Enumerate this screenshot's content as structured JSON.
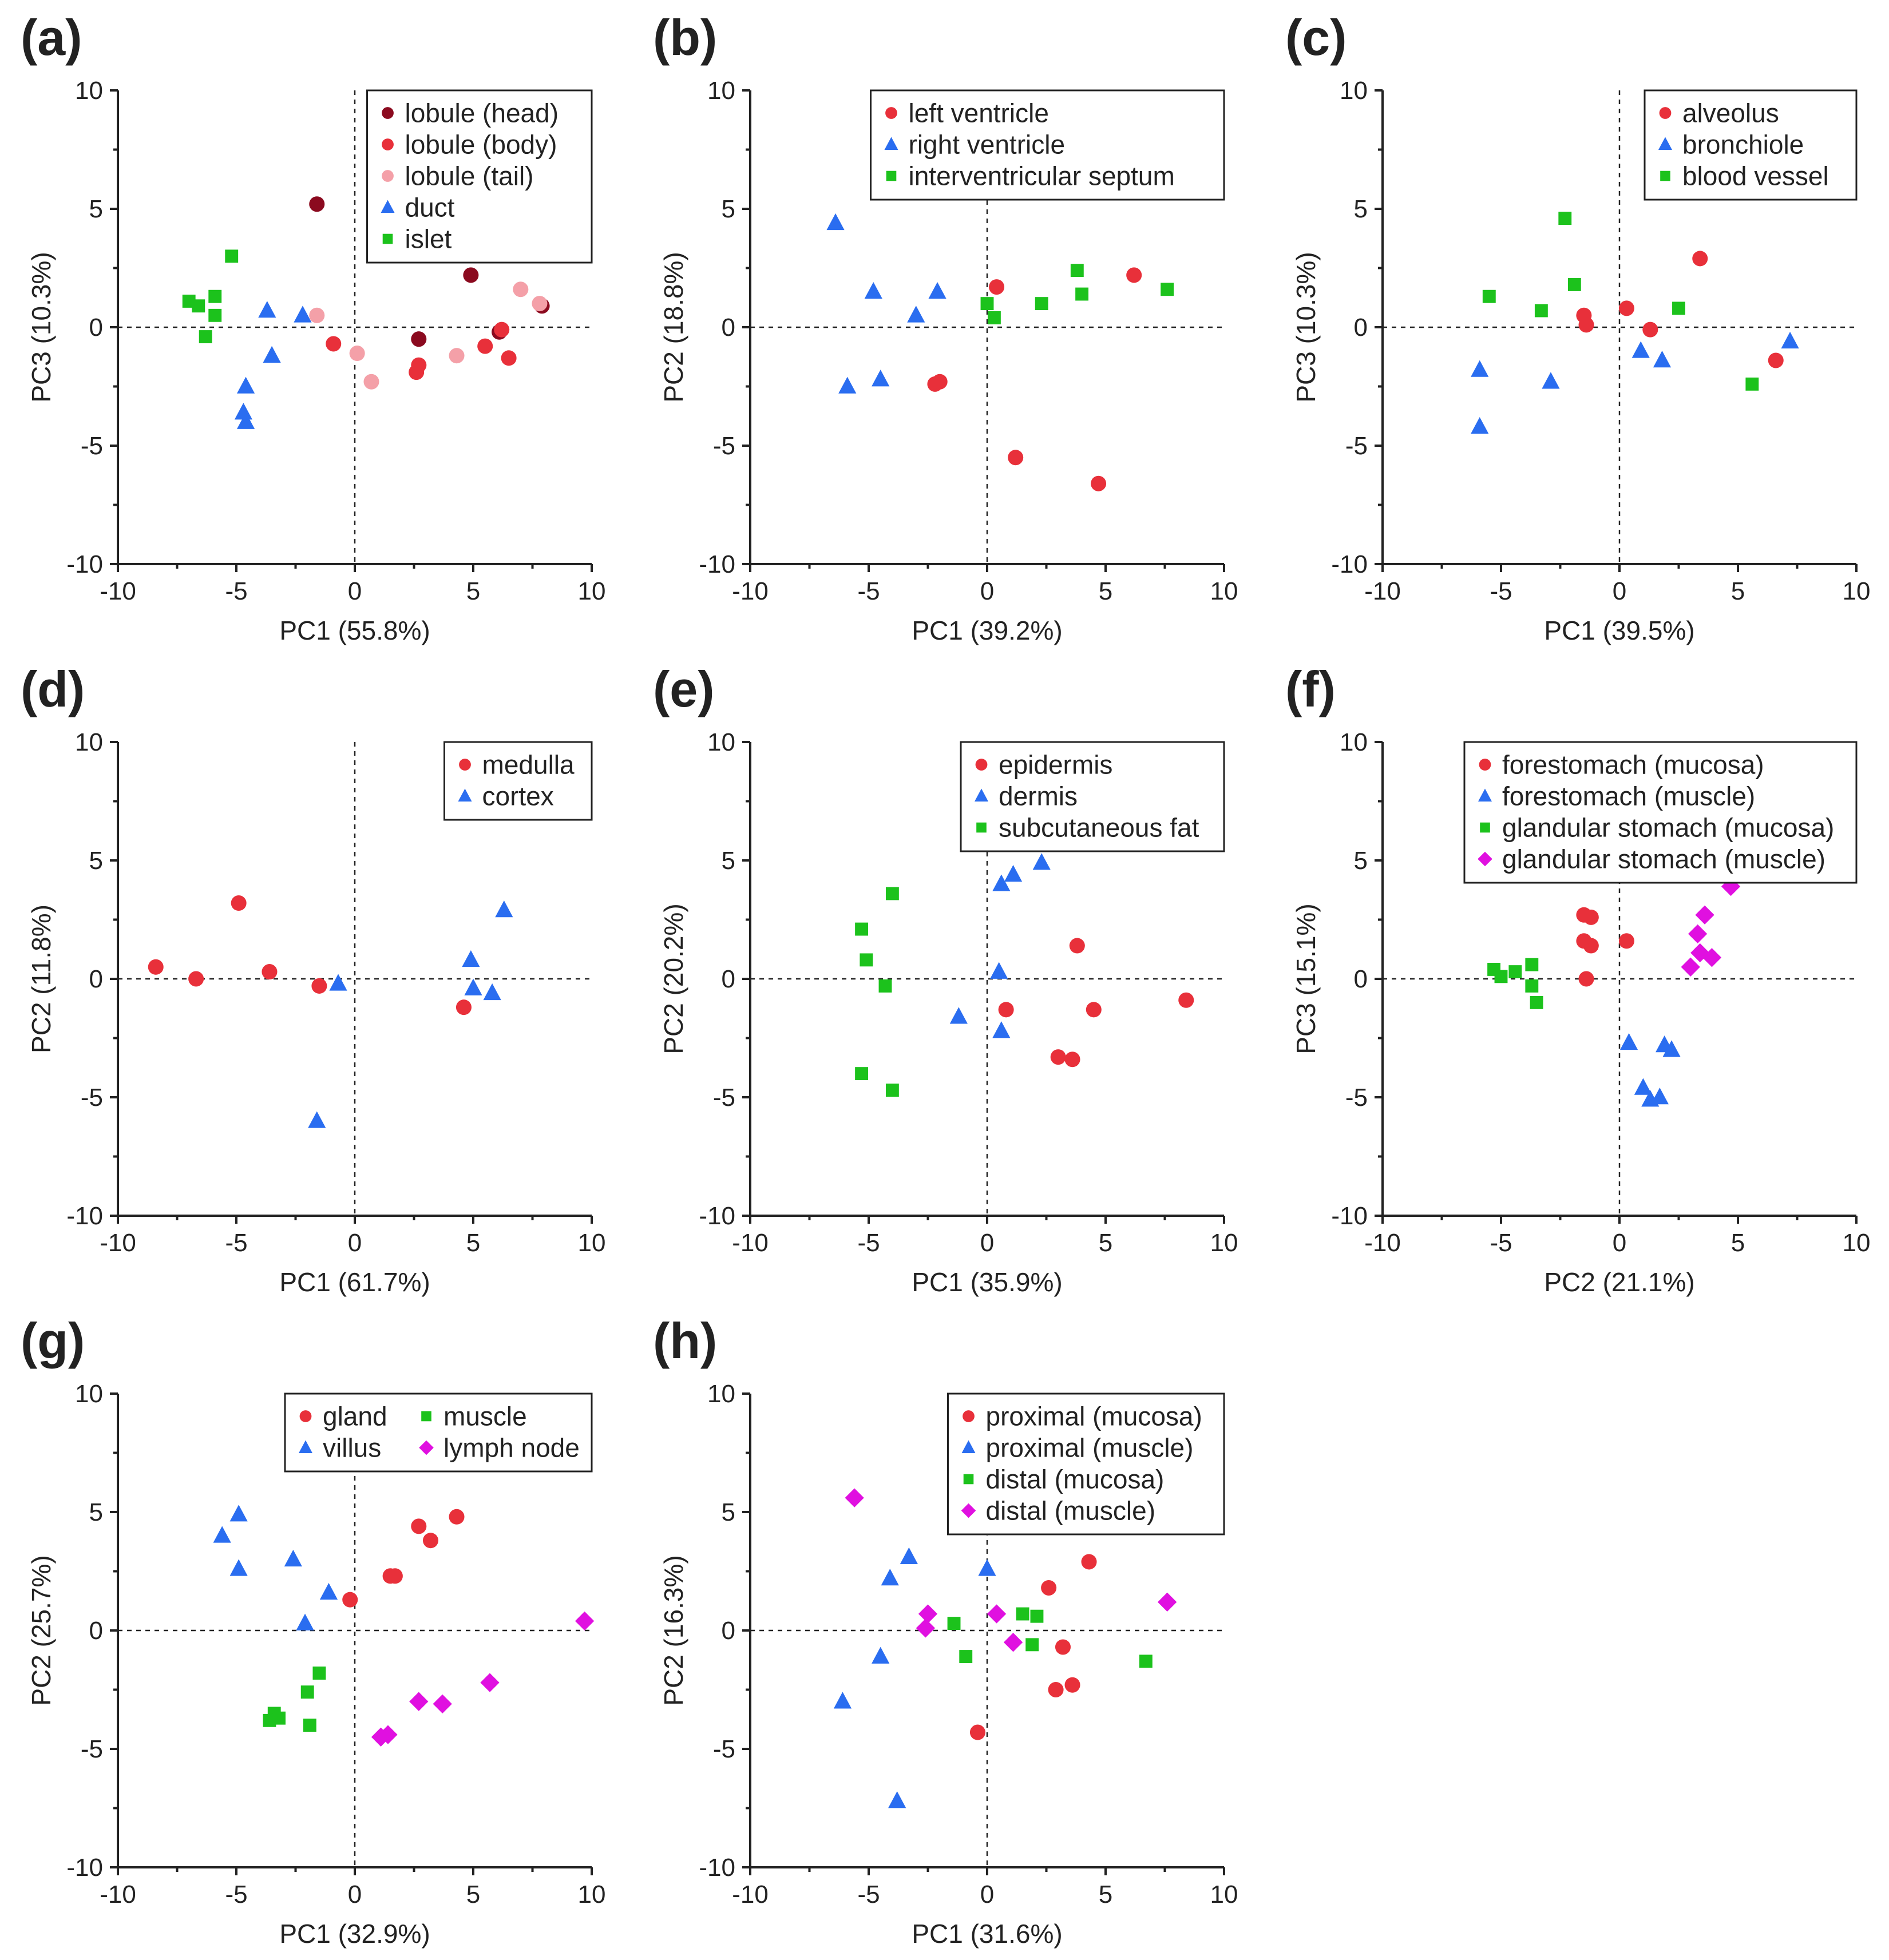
{
  "series_colors": {
    "red": "#e8303a",
    "dark_red": "#8b0a1f",
    "pink": "#f4a0a8",
    "blue": "#2a6df0",
    "green": "#1cc21c",
    "magenta": "#e010e0"
  },
  "chart_data": [
    {
      "id": "a",
      "type": "scatter",
      "label": "(a)",
      "xlabel": "PC1 (55.8%)",
      "ylabel": "PC3 (10.3%)",
      "xlim": [
        -10,
        10
      ],
      "ylim": [
        -10,
        10
      ],
      "ticks": [
        -10,
        -5,
        0,
        5,
        10
      ],
      "tick_labels": [
        "-10",
        "-5",
        "0",
        "5",
        "10"
      ],
      "legend_position": "top-right",
      "legend_columns": 1,
      "series": [
        {
          "name": "lobule (head)",
          "color": "#8b0a1f",
          "marker": "circle",
          "points": [
            [
              -1.6,
              5.2
            ],
            [
              4.9,
              2.2
            ],
            [
              2.7,
              -0.5
            ],
            [
              6.1,
              -0.2
            ],
            [
              7.9,
              0.9
            ]
          ]
        },
        {
          "name": "lobule (body)",
          "color": "#e8303a",
          "marker": "circle",
          "points": [
            [
              -0.9,
              -0.7
            ],
            [
              2.7,
              -1.6
            ],
            [
              2.6,
              -1.9
            ],
            [
              5.5,
              -0.8
            ],
            [
              6.5,
              -1.3
            ],
            [
              6.2,
              -0.1
            ]
          ]
        },
        {
          "name": "lobule (tail)",
          "color": "#f4a0a8",
          "marker": "circle",
          "points": [
            [
              -1.6,
              0.5
            ],
            [
              0.1,
              -1.1
            ],
            [
              0.7,
              -2.3
            ],
            [
              4.3,
              -1.2
            ],
            [
              7.0,
              1.6
            ],
            [
              7.8,
              1.0
            ]
          ]
        },
        {
          "name": "duct",
          "color": "#2a6df0",
          "marker": "triangle",
          "points": [
            [
              -3.7,
              0.7
            ],
            [
              -2.2,
              0.5
            ],
            [
              -3.5,
              -1.2
            ],
            [
              -4.6,
              -2.5
            ],
            [
              -4.7,
              -3.6
            ],
            [
              -4.6,
              -4.0
            ]
          ]
        },
        {
          "name": "islet",
          "color": "#1cc21c",
          "marker": "square",
          "points": [
            [
              -5.2,
              3.0
            ],
            [
              -7.0,
              1.1
            ],
            [
              -6.6,
              0.9
            ],
            [
              -5.9,
              1.3
            ],
            [
              -5.9,
              0.5
            ],
            [
              -6.3,
              -0.4
            ]
          ]
        }
      ]
    },
    {
      "id": "b",
      "type": "scatter",
      "label": "(b)",
      "xlabel": "PC1 (39.2%)",
      "ylabel": "PC2 (18.8%)",
      "xlim": [
        -10,
        10
      ],
      "ylim": [
        -10,
        10
      ],
      "ticks": [
        -10,
        -5,
        0,
        5,
        10
      ],
      "tick_labels": [
        "-10",
        "-5",
        "0",
        "5",
        "10"
      ],
      "legend_position": "top-right",
      "legend_columns": 1,
      "series": [
        {
          "name": "left ventricle",
          "color": "#e8303a",
          "marker": "circle",
          "points": [
            [
              0.4,
              1.7
            ],
            [
              6.2,
              2.2
            ],
            [
              -2.2,
              -2.4
            ],
            [
              -2.0,
              -2.3
            ],
            [
              1.2,
              -5.5
            ],
            [
              4.7,
              -6.6
            ]
          ]
        },
        {
          "name": "right ventricle",
          "color": "#2a6df0",
          "marker": "triangle",
          "points": [
            [
              -6.4,
              4.4
            ],
            [
              -4.8,
              1.5
            ],
            [
              -2.1,
              1.5
            ],
            [
              -3.0,
              0.5
            ],
            [
              -5.9,
              -2.5
            ],
            [
              -4.5,
              -2.2
            ]
          ]
        },
        {
          "name": "interventricular septum",
          "color": "#1cc21c",
          "marker": "square",
          "points": [
            [
              3.8,
              2.4
            ],
            [
              7.6,
              1.6
            ],
            [
              0.0,
              1.0
            ],
            [
              2.3,
              1.0
            ],
            [
              4.0,
              1.4
            ],
            [
              0.3,
              0.4
            ]
          ]
        }
      ]
    },
    {
      "id": "c",
      "type": "scatter",
      "label": "(c)",
      "xlabel": "PC1 (39.5%)",
      "ylabel": "PC3 (10.3%)",
      "xlim": [
        -10,
        10
      ],
      "ylim": [
        -10,
        10
      ],
      "ticks": [
        -10,
        -5,
        0,
        5,
        10
      ],
      "tick_labels": [
        "-10",
        "-5",
        "0",
        "5",
        "10"
      ],
      "legend_position": "top-right",
      "legend_columns": 1,
      "series": [
        {
          "name": "alveolus",
          "color": "#e8303a",
          "marker": "circle",
          "points": [
            [
              3.4,
              2.9
            ],
            [
              0.3,
              0.8
            ],
            [
              -1.5,
              0.5
            ],
            [
              -1.4,
              0.1
            ],
            [
              1.3,
              -0.1
            ],
            [
              6.6,
              -1.4
            ]
          ]
        },
        {
          "name": "bronchiole",
          "color": "#2a6df0",
          "marker": "triangle",
          "points": [
            [
              -5.9,
              -1.8
            ],
            [
              -2.9,
              -2.3
            ],
            [
              -5.9,
              -4.2
            ],
            [
              0.9,
              -1.0
            ],
            [
              1.8,
              -1.4
            ],
            [
              7.2,
              -0.6
            ]
          ]
        },
        {
          "name": "blood vessel",
          "color": "#1cc21c",
          "marker": "square",
          "points": [
            [
              -2.3,
              4.6
            ],
            [
              -1.9,
              1.8
            ],
            [
              -5.5,
              1.3
            ],
            [
              -3.3,
              0.7
            ],
            [
              2.5,
              0.8
            ],
            [
              5.6,
              -2.4
            ]
          ]
        }
      ]
    },
    {
      "id": "d",
      "type": "scatter",
      "label": "(d)",
      "xlabel": "PC1 (61.7%)",
      "ylabel": "PC2 (11.8%)",
      "xlim": [
        -10,
        10
      ],
      "ylim": [
        -10,
        10
      ],
      "ticks": [
        -10,
        -5,
        0,
        5,
        10
      ],
      "tick_labels": [
        "-10",
        "-5",
        "0",
        "5",
        "10"
      ],
      "legend_position": "top-right",
      "legend_columns": 1,
      "series": [
        {
          "name": "medulla",
          "color": "#e8303a",
          "marker": "circle",
          "points": [
            [
              -4.9,
              3.2
            ],
            [
              -8.4,
              0.5
            ],
            [
              -6.7,
              0.0
            ],
            [
              -3.6,
              0.3
            ],
            [
              -1.5,
              -0.3
            ],
            [
              4.6,
              -1.2
            ]
          ]
        },
        {
          "name": "cortex",
          "color": "#2a6df0",
          "marker": "triangle",
          "points": [
            [
              6.3,
              2.9
            ],
            [
              4.9,
              0.8
            ],
            [
              5.0,
              -0.4
            ],
            [
              5.8,
              -0.6
            ],
            [
              -0.7,
              -0.2
            ],
            [
              -1.6,
              -6.0
            ]
          ]
        }
      ]
    },
    {
      "id": "e",
      "type": "scatter",
      "label": "(e)",
      "xlabel": "PC1 (35.9%)",
      "ylabel": "PC2 (20.2%)",
      "xlim": [
        -10,
        10
      ],
      "ylim": [
        -10,
        10
      ],
      "ticks": [
        -10,
        -5,
        0,
        5,
        10
      ],
      "tick_labels": [
        "-10",
        "-5",
        "0",
        "5",
        "10"
      ],
      "legend_position": "top-right",
      "legend_columns": 1,
      "series": [
        {
          "name": "epidermis",
          "color": "#e8303a",
          "marker": "circle",
          "points": [
            [
              3.8,
              1.4
            ],
            [
              0.8,
              -1.3
            ],
            [
              4.5,
              -1.3
            ],
            [
              8.4,
              -0.9
            ],
            [
              3.0,
              -3.3
            ],
            [
              3.6,
              -3.4
            ]
          ]
        },
        {
          "name": "dermis",
          "color": "#2a6df0",
          "marker": "triangle",
          "points": [
            [
              2.3,
              4.9
            ],
            [
              1.1,
              4.4
            ],
            [
              0.6,
              4.0
            ],
            [
              0.5,
              0.3
            ],
            [
              -1.2,
              -1.6
            ],
            [
              0.6,
              -2.2
            ]
          ]
        },
        {
          "name": "subcutaneous fat",
          "color": "#1cc21c",
          "marker": "square",
          "points": [
            [
              -4.0,
              3.6
            ],
            [
              -5.3,
              2.1
            ],
            [
              -5.1,
              0.8
            ],
            [
              -4.3,
              -0.3
            ],
            [
              -5.3,
              -4.0
            ],
            [
              -4.0,
              -4.7
            ]
          ]
        }
      ]
    },
    {
      "id": "f",
      "type": "scatter",
      "label": "(f)",
      "xlabel": "PC2 (21.1%)",
      "ylabel": "PC3 (15.1%)",
      "xlim": [
        -10,
        10
      ],
      "ylim": [
        -10,
        10
      ],
      "ticks": [
        -10,
        -5,
        0,
        5,
        10
      ],
      "tick_labels": [
        "-10",
        "-5",
        "0",
        "5",
        "10"
      ],
      "legend_position": "top-right",
      "legend_columns": 1,
      "series": [
        {
          "name": "forestomach (mucosa)",
          "color": "#e8303a",
          "marker": "circle",
          "points": [
            [
              -1.5,
              2.7
            ],
            [
              -1.2,
              2.6
            ],
            [
              -1.5,
              1.6
            ],
            [
              -1.2,
              1.4
            ],
            [
              0.3,
              1.6
            ],
            [
              -1.4,
              0.0
            ]
          ]
        },
        {
          "name": "forestomach (muscle)",
          "color": "#2a6df0",
          "marker": "triangle",
          "points": [
            [
              0.4,
              -2.7
            ],
            [
              1.9,
              -2.8
            ],
            [
              2.2,
              -3.0
            ],
            [
              1.0,
              -4.6
            ],
            [
              1.3,
              -5.1
            ],
            [
              1.7,
              -5.0
            ]
          ]
        },
        {
          "name": "glandular stomach (mucosa)",
          "color": "#1cc21c",
          "marker": "square",
          "points": [
            [
              -5.3,
              0.4
            ],
            [
              -5.0,
              0.1
            ],
            [
              -4.4,
              0.3
            ],
            [
              -3.7,
              0.6
            ],
            [
              -3.7,
              -0.3
            ],
            [
              -3.5,
              -1.0
            ]
          ]
        },
        {
          "name": "glandular stomach (muscle)",
          "color": "#e010e0",
          "marker": "diamond",
          "points": [
            [
              4.7,
              3.9
            ],
            [
              3.6,
              2.7
            ],
            [
              3.3,
              1.9
            ],
            [
              3.4,
              1.1
            ],
            [
              3.0,
              0.5
            ],
            [
              3.9,
              0.9
            ]
          ]
        }
      ]
    },
    {
      "id": "g",
      "type": "scatter",
      "label": "(g)",
      "xlabel": "PC1 (32.9%)",
      "ylabel": "PC2 (25.7%)",
      "xlim": [
        -10,
        10
      ],
      "ylim": [
        -10,
        10
      ],
      "ticks": [
        -10,
        -5,
        0,
        5,
        10
      ],
      "tick_labels": [
        "-10",
        "-5",
        "0",
        "5",
        "10"
      ],
      "legend_position": "top-right",
      "legend_columns": 2,
      "series": [
        {
          "name": "gland",
          "color": "#e8303a",
          "marker": "circle",
          "points": [
            [
              4.3,
              4.8
            ],
            [
              2.7,
              4.4
            ],
            [
              3.2,
              3.8
            ],
            [
              1.5,
              2.3
            ],
            [
              1.7,
              2.3
            ],
            [
              -0.2,
              1.3
            ]
          ]
        },
        {
          "name": "villus",
          "color": "#2a6df0",
          "marker": "triangle",
          "points": [
            [
              -4.9,
              4.9
            ],
            [
              -5.6,
              4.0
            ],
            [
              -4.9,
              2.6
            ],
            [
              -2.6,
              3.0
            ],
            [
              -1.1,
              1.6
            ],
            [
              -2.1,
              0.3
            ]
          ]
        },
        {
          "name": "muscle",
          "color": "#1cc21c",
          "marker": "square",
          "points": [
            [
              -1.5,
              -1.8
            ],
            [
              -2.0,
              -2.6
            ],
            [
              -3.4,
              -3.5
            ],
            [
              -3.2,
              -3.7
            ],
            [
              -3.6,
              -3.8
            ],
            [
              -1.9,
              -4.0
            ]
          ]
        },
        {
          "name": "lymph node",
          "color": "#e010e0",
          "marker": "diamond",
          "points": [
            [
              9.7,
              0.4
            ],
            [
              5.7,
              -2.2
            ],
            [
              2.7,
              -3.0
            ],
            [
              3.7,
              -3.1
            ],
            [
              1.1,
              -4.5
            ],
            [
              1.4,
              -4.4
            ]
          ]
        }
      ]
    },
    {
      "id": "h",
      "type": "scatter",
      "label": "(h)",
      "xlabel": "PC1 (31.6%)",
      "ylabel": "PC2 (16.3%)",
      "xlim": [
        -10,
        10
      ],
      "ylim": [
        -10,
        10
      ],
      "ticks": [
        -10,
        -5,
        0,
        5,
        10
      ],
      "tick_labels": [
        "-10",
        "-5",
        "0",
        "5",
        "10"
      ],
      "legend_position": "top-right",
      "legend_columns": 1,
      "series": [
        {
          "name": "proximal (mucosa)",
          "color": "#e8303a",
          "marker": "circle",
          "points": [
            [
              4.3,
              2.9
            ],
            [
              2.6,
              1.8
            ],
            [
              3.2,
              -0.7
            ],
            [
              2.9,
              -2.5
            ],
            [
              3.6,
              -2.3
            ],
            [
              -0.4,
              -4.3
            ]
          ]
        },
        {
          "name": "proximal (muscle)",
          "color": "#2a6df0",
          "marker": "triangle",
          "points": [
            [
              -3.3,
              3.1
            ],
            [
              0.0,
              2.6
            ],
            [
              -4.1,
              2.2
            ],
            [
              -4.5,
              -1.1
            ],
            [
              -6.1,
              -3.0
            ],
            [
              -3.8,
              -7.2
            ]
          ]
        },
        {
          "name": "distal (mucosa)",
          "color": "#1cc21c",
          "marker": "square",
          "points": [
            [
              -1.4,
              0.3
            ],
            [
              1.5,
              0.7
            ],
            [
              2.1,
              0.6
            ],
            [
              -0.9,
              -1.1
            ],
            [
              1.9,
              -0.6
            ],
            [
              6.7,
              -1.3
            ]
          ]
        },
        {
          "name": "distal (muscle)",
          "color": "#e010e0",
          "marker": "diamond",
          "points": [
            [
              -5.6,
              5.6
            ],
            [
              -2.5,
              0.7
            ],
            [
              -2.6,
              0.1
            ],
            [
              0.4,
              0.7
            ],
            [
              1.1,
              -0.5
            ],
            [
              7.6,
              1.2
            ]
          ]
        }
      ]
    }
  ]
}
